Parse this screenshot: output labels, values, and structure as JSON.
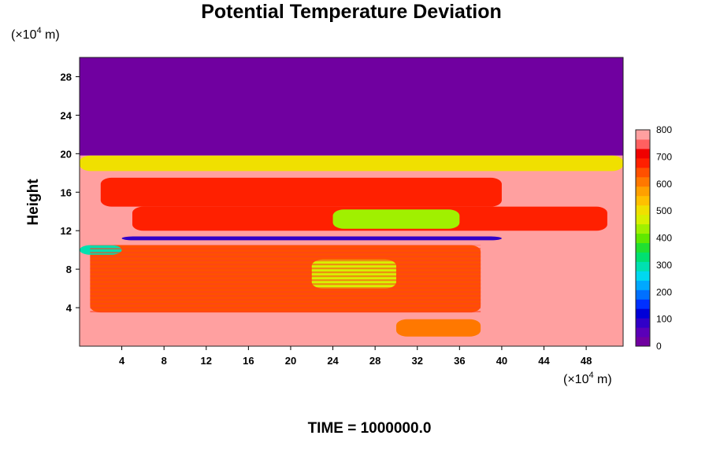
{
  "chart_data": {
    "type": "heatmap",
    "title": "Potential Temperature Deviation",
    "ylabel": "Height",
    "x_unit_base": "(×10",
    "x_unit_exp": "4",
    "x_unit_tail": " m)",
    "y_unit_base": "(×10",
    "y_unit_exp": "4",
    "y_unit_tail": " m)",
    "time_label": "TIME = 1000000.0",
    "xlim": [
      0,
      51.5
    ],
    "ylim": [
      0,
      30
    ],
    "x_ticks": [
      4,
      8,
      12,
      16,
      20,
      24,
      28,
      32,
      36,
      40,
      44,
      48
    ],
    "y_ticks": [
      4,
      8,
      12,
      16,
      20,
      24,
      28
    ],
    "colorbar": {
      "range": [
        0,
        800
      ],
      "ticks": [
        0,
        100,
        200,
        300,
        400,
        500,
        600,
        700,
        800
      ],
      "colors": [
        "#7000a0",
        "#5a00b8",
        "#3000c8",
        "#0000d8",
        "#0030ff",
        "#0070ff",
        "#00a8ff",
        "#00d8f0",
        "#00e0b0",
        "#00e070",
        "#20e030",
        "#60e800",
        "#a0f000",
        "#d8f000",
        "#f0e000",
        "#ffc000",
        "#ffa000",
        "#ff7800",
        "#ff5000",
        "#ff2000",
        "#f00000",
        "#ff6060",
        "#ffa0a0"
      ]
    },
    "regions": [
      {
        "name": "upper-layer",
        "x": [
          0,
          51.5
        ],
        "y": [
          19.8,
          30
        ],
        "value": 0
      },
      {
        "name": "background",
        "x": [
          0,
          51.5
        ],
        "y": [
          0,
          19.8
        ],
        "value": 800
      },
      {
        "name": "upper-band-a",
        "x": [
          2,
          40
        ],
        "y": [
          14.5,
          17.5
        ],
        "value": 700
      },
      {
        "name": "upper-band-b",
        "x": [
          5,
          50
        ],
        "y": [
          12.0,
          14.5
        ],
        "value": 680
      },
      {
        "name": "green-core",
        "x": [
          24,
          36
        ],
        "y": [
          12.2,
          14.2
        ],
        "value": 430
      },
      {
        "name": "dark-line",
        "x": [
          4,
          40
        ],
        "y": [
          11.0,
          11.4
        ],
        "value": 60
      },
      {
        "name": "lower-band",
        "x": [
          1,
          38
        ],
        "y": [
          3.5,
          10.5
        ],
        "value": 650
      },
      {
        "name": "lower-green",
        "x": [
          22,
          30
        ],
        "y": [
          6,
          9
        ],
        "value": 480
      },
      {
        "name": "left-cyan",
        "x": [
          0,
          4
        ],
        "y": [
          9.5,
          10.5
        ],
        "value": 280
      },
      {
        "name": "bottom-patch",
        "x": [
          30,
          38
        ],
        "y": [
          1,
          2.8
        ],
        "value": 600
      },
      {
        "name": "top-edge-mix",
        "x": [
          0,
          51.5
        ],
        "y": [
          18.2,
          19.8
        ],
        "value": 520
      }
    ]
  }
}
